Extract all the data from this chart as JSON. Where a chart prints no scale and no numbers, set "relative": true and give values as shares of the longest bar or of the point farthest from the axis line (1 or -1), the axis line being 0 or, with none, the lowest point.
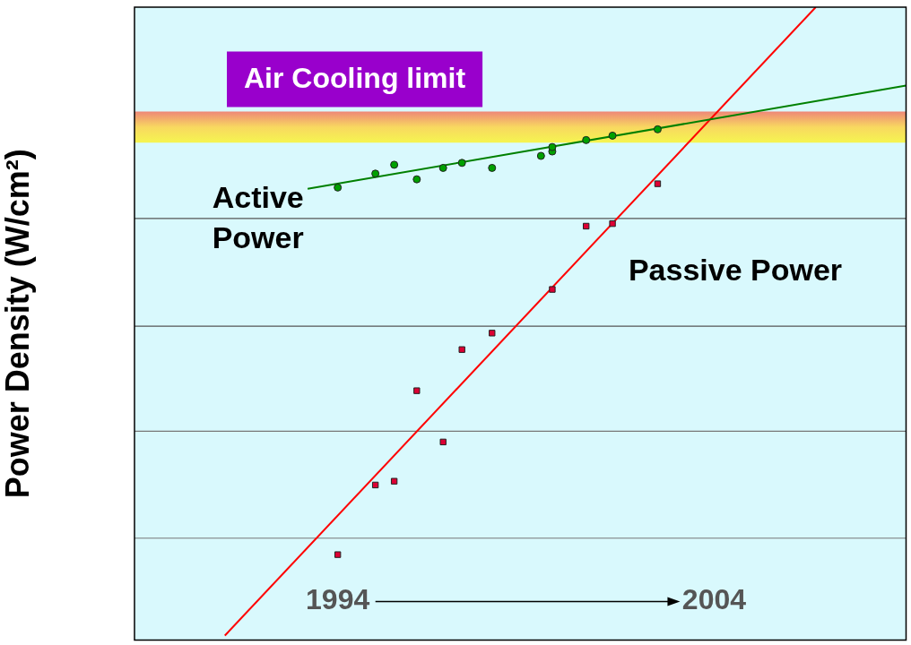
{
  "chart_data": {
    "type": "scatter",
    "ylabel": "Power Density (W/cm²)",
    "relative": true,
    "xlim": [
      1988.6,
      2009.1
    ],
    "xticks": [
      1994,
      2004
    ],
    "series": [
      {
        "name": "Active Power",
        "color": "#00a000",
        "marker": "circle",
        "x": [
          1994,
          1995,
          1995.5,
          1996.1,
          1996.8,
          1997.3,
          1998.1,
          1999.4,
          1999.7,
          1999.7,
          2000.6,
          2001.3,
          2002.5
        ],
        "values": [
          0.715,
          0.737,
          0.751,
          0.728,
          0.746,
          0.754,
          0.746,
          0.765,
          0.772,
          0.779,
          0.79,
          0.797,
          0.807
        ]
      },
      {
        "name": "Passive Power",
        "color": "#dd0033",
        "marker": "square",
        "x": [
          1994,
          1995,
          1995.5,
          1996.1,
          1996.8,
          1997.3,
          1998.1,
          1999.7,
          2000.6,
          2001.3,
          2002.5
        ],
        "values": [
          0.135,
          0.245,
          0.251,
          0.394,
          0.313,
          0.459,
          0.485,
          0.554,
          0.654,
          0.658,
          0.721
        ]
      },
      {
        "type": "line",
        "color": "#008000",
        "x": [
          1993.2,
          2009.1
        ],
        "values": [
          0.713,
          0.876
        ]
      },
      {
        "type": "line",
        "color": "#ff0000",
        "x": [
          1991.0,
          2006.7
        ],
        "values": [
          0.007,
          1.0
        ]
      }
    ],
    "ref_lines": [
      {
        "axis": "y",
        "value": 0.666,
        "color": "#555555"
      },
      {
        "axis": "y",
        "value": 0.496,
        "color": "#555555"
      },
      {
        "axis": "y",
        "value": 0.33,
        "color": "#777777"
      },
      {
        "axis": "y",
        "value": 0.161,
        "color": "#777777"
      }
    ],
    "bands": [
      {
        "axis": "y",
        "from": 0.786,
        "to": 0.835,
        "label": "Air Cooling limit",
        "color": "#f8d860"
      }
    ],
    "legend": false
  }
}
